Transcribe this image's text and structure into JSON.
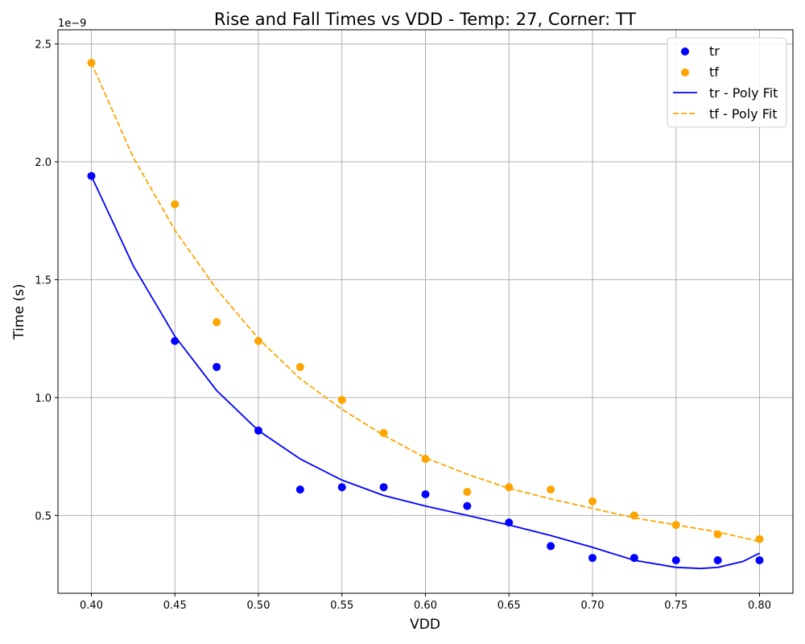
{
  "chart_data": {
    "type": "scatter",
    "title": "Rise and Fall Times vs VDD - Temp: 27, Corner: TT",
    "xlabel": "VDD",
    "ylabel": "Time (s)",
    "y_offset_text": "1e−9",
    "y_scale": 1e-09,
    "xlim": [
      0.38,
      0.82
    ],
    "ylim": [
      0.17,
      2.56
    ],
    "x_ticks": [
      0.4,
      0.45,
      0.5,
      0.55,
      0.6,
      0.65,
      0.7,
      0.75,
      0.8
    ],
    "x_tick_labels": [
      "0.40",
      "0.45",
      "0.50",
      "0.55",
      "0.60",
      "0.65",
      "0.70",
      "0.75",
      "0.80"
    ],
    "y_ticks": [
      0.5,
      1.0,
      1.5,
      2.0,
      2.5
    ],
    "y_tick_labels": [
      "0.5",
      "1.0",
      "1.5",
      "2.0",
      "2.5"
    ],
    "grid": true,
    "legend_position": "top-right",
    "x": [
      0.4,
      0.45,
      0.475,
      0.5,
      0.525,
      0.55,
      0.575,
      0.6,
      0.625,
      0.65,
      0.675,
      0.7,
      0.725,
      0.75,
      0.775,
      0.8
    ],
    "series": [
      {
        "name": "tr",
        "kind": "scatter",
        "color": "#0000ff",
        "values": [
          1.94,
          1.24,
          1.13,
          0.86,
          0.61,
          0.62,
          0.62,
          0.59,
          0.54,
          0.47,
          0.37,
          0.32,
          0.32,
          0.31,
          0.31,
          0.31
        ]
      },
      {
        "name": "tf",
        "kind": "scatter",
        "color": "#ffa500",
        "values": [
          2.42,
          1.82,
          1.32,
          1.24,
          1.13,
          0.99,
          0.85,
          0.74,
          0.6,
          0.62,
          0.61,
          0.56,
          0.5,
          0.46,
          0.42,
          0.4
        ]
      },
      {
        "name": "tr - Poly Fit",
        "kind": "line",
        "color": "#0000ff",
        "dash": "solid",
        "x": [
          0.4,
          0.425,
          0.45,
          0.475,
          0.5,
          0.525,
          0.55,
          0.575,
          0.6,
          0.625,
          0.65,
          0.675,
          0.7,
          0.725,
          0.75,
          0.765,
          0.775,
          0.79,
          0.8
        ],
        "values": [
          1.94,
          1.56,
          1.26,
          1.03,
          0.86,
          0.74,
          0.65,
          0.585,
          0.54,
          0.5,
          0.46,
          0.415,
          0.365,
          0.31,
          0.28,
          0.275,
          0.28,
          0.305,
          0.34
        ]
      },
      {
        "name": "tf - Poly Fit",
        "kind": "line",
        "color": "#ffa500",
        "dash": "dashed",
        "x": [
          0.4,
          0.425,
          0.45,
          0.475,
          0.5,
          0.525,
          0.55,
          0.575,
          0.6,
          0.625,
          0.65,
          0.675,
          0.7,
          0.725,
          0.75,
          0.775,
          0.8
        ],
        "values": [
          2.42,
          2.02,
          1.71,
          1.46,
          1.25,
          1.08,
          0.95,
          0.84,
          0.745,
          0.675,
          0.615,
          0.57,
          0.53,
          0.49,
          0.46,
          0.43,
          0.39
        ]
      }
    ]
  }
}
